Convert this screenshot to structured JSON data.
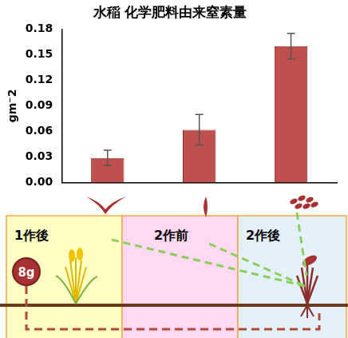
{
  "chart_data": {
    "type": "bar",
    "title": "水稲 化学肥料由来窒素量",
    "y_label": "gm⁻2",
    "categories": [
      null,
      null,
      null
    ],
    "values": [
      0.029,
      0.062,
      0.16
    ],
    "errors": [
      0.009,
      0.018,
      0.015
    ],
    "color": "#c0504d",
    "ylim": [
      0,
      0.18
    ],
    "yticks": [
      {
        "value": 0,
        "label": "0.00"
      },
      0.03,
      0.06,
      0.09,
      0.12,
      0.15,
      0.18
    ],
    "grid": false,
    "tick_labels": "y"
  },
  "diagram": {
    "panels": [
      "1作後",
      "2作前",
      "2作後"
    ],
    "fertilizer_label": "8g"
  }
}
